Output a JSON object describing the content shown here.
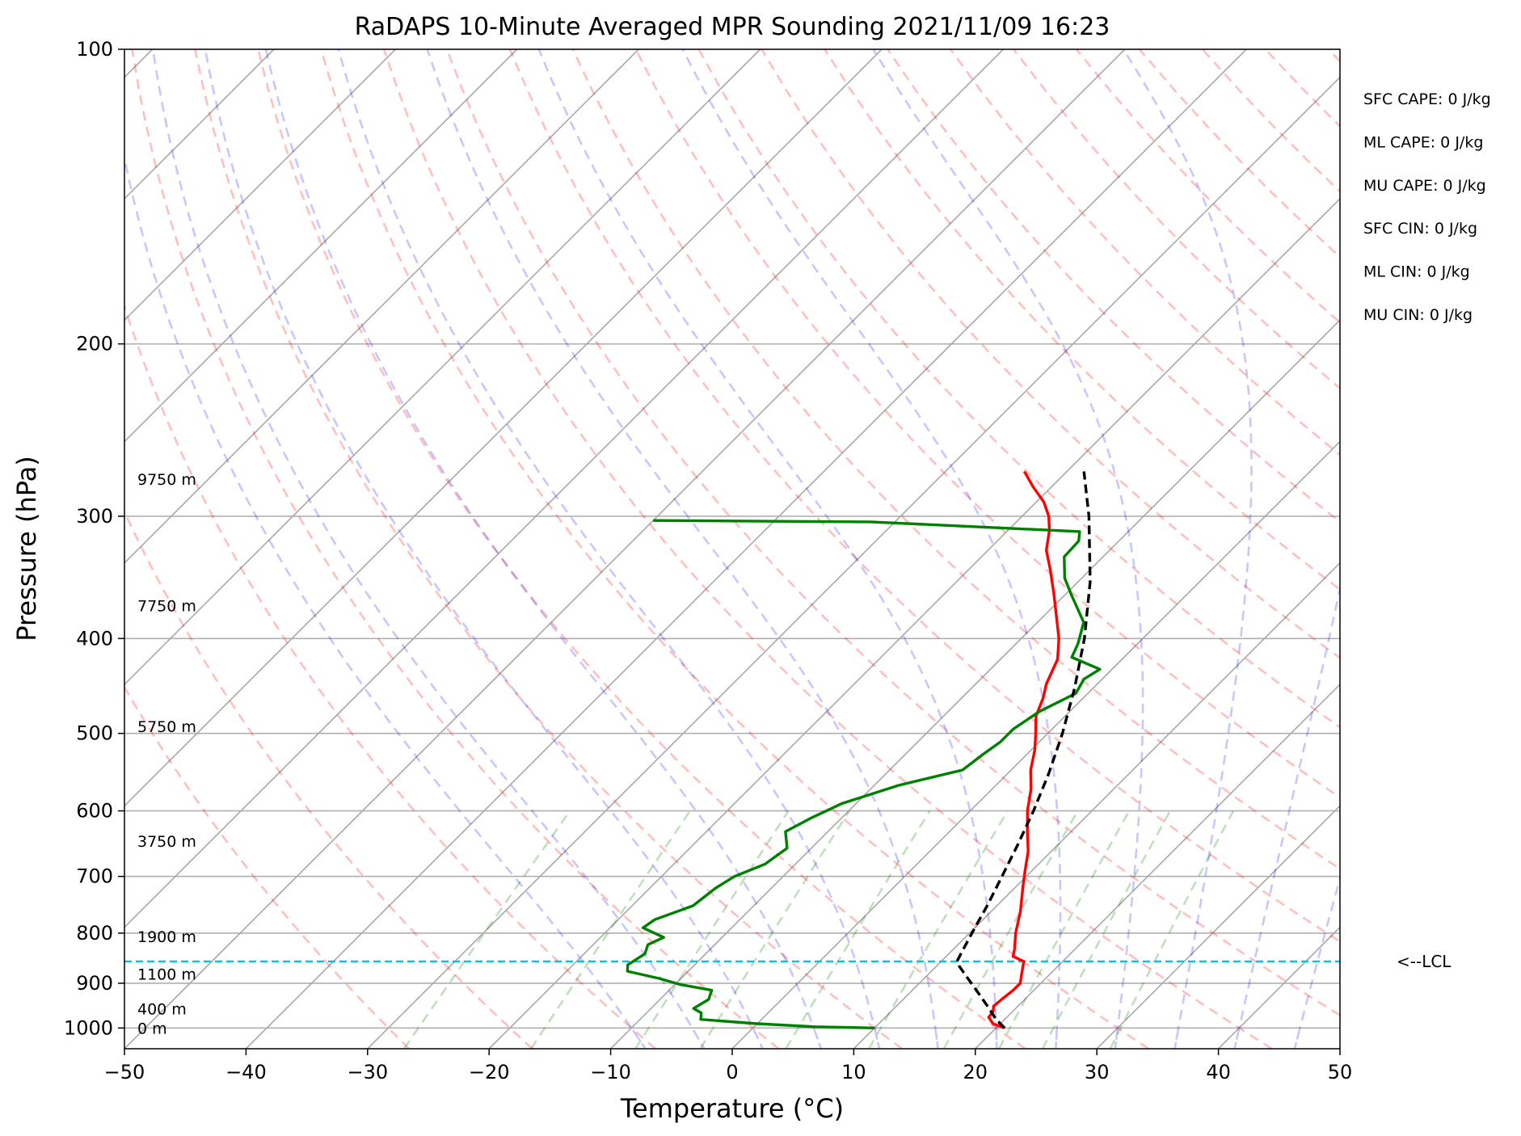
{
  "chart_data": {
    "type": "skew-t",
    "title": "RaDAPS 10-Minute Averaged MPR Sounding 2021/11/09 16:23",
    "xlabel": "Temperature (°C)",
    "ylabel": "Pressure (hPa)",
    "xlim": [
      -50,
      50
    ],
    "ylim": [
      1050,
      100
    ],
    "y_scale": "log",
    "grid": true,
    "x_ticks": [
      -50,
      -40,
      -30,
      -20,
      -10,
      0,
      10,
      20,
      30,
      40,
      50
    ],
    "x_tick_labels": [
      "−50",
      "−40",
      "−30",
      "−20",
      "−10",
      "0",
      "10",
      "20",
      "30",
      "40",
      "50"
    ],
    "y_ticks": [
      1000,
      900,
      800,
      700,
      600,
      500,
      400,
      300,
      200,
      100
    ],
    "y_tick_labels": [
      "1000",
      "900",
      "800",
      "700",
      "600",
      "500",
      "400",
      "300",
      "200",
      "100"
    ],
    "height_labels": [
      {
        "text": "0 m",
        "p": 1000
      },
      {
        "text": "400 m",
        "p": 956
      },
      {
        "text": "1100 m",
        "p": 881
      },
      {
        "text": "1900 m",
        "p": 806
      },
      {
        "text": "3750 m",
        "p": 644
      },
      {
        "text": "5750 m",
        "p": 492
      },
      {
        "text": "7750 m",
        "p": 370
      },
      {
        "text": "9750 m",
        "p": 275
      }
    ],
    "lcl": {
      "label": "<--LCL",
      "p": 855
    },
    "indices": [
      "SFC CAPE: 0 J/kg",
      "ML CAPE: 0 J/kg",
      "MU CAPE: 0 J/kg",
      "SFC CIN: 0 J/kg",
      "ML CIN: 0 J/kg",
      "MU CIN: 0 J/kg"
    ],
    "series": [
      {
        "color": "#ff0000",
        "points": [
          [
            1000,
            20.7
          ],
          [
            990,
            19.4
          ],
          [
            975,
            18.5
          ],
          [
            962,
            18.4
          ],
          [
            950,
            18.0
          ],
          [
            935,
            18.1
          ],
          [
            915,
            18.3
          ],
          [
            900,
            18.3
          ],
          [
            885,
            17.8
          ],
          [
            870,
            17.3
          ],
          [
            855,
            16.8
          ],
          [
            845,
            15.5
          ],
          [
            830,
            15.0
          ],
          [
            800,
            13.8
          ],
          [
            760,
            12.4
          ],
          [
            720,
            10.7
          ],
          [
            690,
            9.4
          ],
          [
            660,
            8.1
          ],
          [
            630,
            6.4
          ],
          [
            600,
            4.7
          ],
          [
            570,
            3.2
          ],
          [
            545,
            1.6
          ],
          [
            520,
            0.3
          ],
          [
            500,
            -1.0
          ],
          [
            480,
            -2.4
          ],
          [
            460,
            -3.3
          ],
          [
            445,
            -4.2
          ],
          [
            420,
            -5.3
          ],
          [
            400,
            -6.9
          ],
          [
            380,
            -8.9
          ],
          [
            360,
            -11.0
          ],
          [
            340,
            -13.3
          ],
          [
            325,
            -15.2
          ],
          [
            310,
            -16.6
          ],
          [
            300,
            -17.8
          ],
          [
            290,
            -19.4
          ],
          [
            280,
            -21.5
          ],
          [
            270,
            -23.5
          ]
        ]
      },
      {
        "color": "#008000",
        "points": [
          [
            1000,
            10.0
          ],
          [
            997,
            5.0
          ],
          [
            990,
            0.0
          ],
          [
            980,
            -5.0
          ],
          [
            965,
            -5.5
          ],
          [
            955,
            -6.5
          ],
          [
            935,
            -6.0
          ],
          [
            915,
            -6.5
          ],
          [
            903,
            -9.5
          ],
          [
            890,
            -11.8
          ],
          [
            875,
            -15.0
          ],
          [
            862,
            -15.5
          ],
          [
            840,
            -15.0
          ],
          [
            822,
            -15.5
          ],
          [
            808,
            -14.8
          ],
          [
            790,
            -17.3
          ],
          [
            775,
            -17.0
          ],
          [
            750,
            -15.0
          ],
          [
            720,
            -14.6
          ],
          [
            700,
            -14.0
          ],
          [
            680,
            -12.5
          ],
          [
            655,
            -12.0
          ],
          [
            630,
            -13.5
          ],
          [
            610,
            -12.5
          ],
          [
            590,
            -11.2
          ],
          [
            565,
            -8.0
          ],
          [
            545,
            -4.0
          ],
          [
            525,
            -3.6
          ],
          [
            510,
            -3.2
          ],
          [
            495,
            -3.2
          ],
          [
            475,
            -2.5
          ],
          [
            455,
            -1.0
          ],
          [
            440,
            -1.5
          ],
          [
            430,
            -1.0
          ],
          [
            418,
            -4.3
          ],
          [
            405,
            -4.9
          ],
          [
            385,
            -6.2
          ],
          [
            360,
            -9.6
          ],
          [
            347,
            -11.4
          ],
          [
            330,
            -13.2
          ],
          [
            318,
            -13.3
          ],
          [
            311,
            -14.0
          ],
          [
            304,
            -32.0
          ],
          [
            303,
            -50.0
          ]
        ]
      },
      {
        "color": "#000000",
        "points": [
          [
            1000,
            20.7
          ],
          [
            980,
            19.3
          ],
          [
            950,
            17.5
          ],
          [
            920,
            15.6
          ],
          [
            890,
            13.6
          ],
          [
            865,
            11.9
          ],
          [
            855,
            11.3
          ],
          [
            830,
            10.8
          ],
          [
            790,
            10.0
          ],
          [
            750,
            9.2
          ],
          [
            700,
            8.0
          ],
          [
            650,
            6.7
          ],
          [
            600,
            5.2
          ],
          [
            550,
            3.4
          ],
          [
            500,
            1.2
          ],
          [
            450,
            -1.5
          ],
          [
            400,
            -4.8
          ],
          [
            350,
            -9.0
          ],
          [
            300,
            -14.5
          ],
          [
            270,
            -18.6
          ]
        ]
      }
    ]
  }
}
